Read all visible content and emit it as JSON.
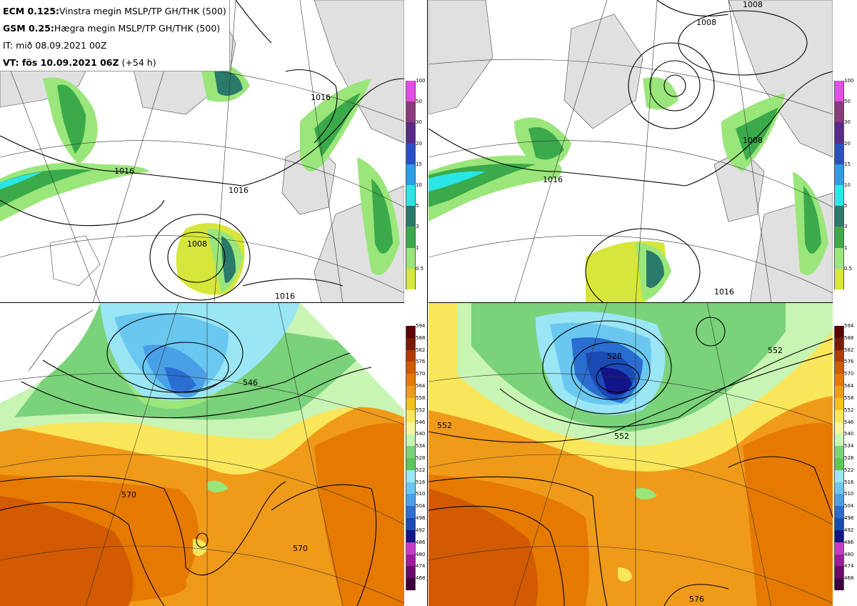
{
  "header": {
    "line1_bold": "ECM 0.125:",
    "line1_text": "Vinstra megin MSLP/TP GH/THK (500)",
    "line2_bold": "GSM 0.25:",
    "line2_text": "Hægra megin MSLP/TP GH/THK (500)",
    "line3_text": "IT: mið 08.09.2021 00Z",
    "line4_bold": "VT: fös 10.09.2021 06Z",
    "line4_text": " (+54 h)"
  },
  "precip_colorbar": {
    "ticks": [
      "100",
      "50",
      "30",
      "20",
      "15",
      "10",
      "5",
      "3",
      "1",
      "0.5"
    ],
    "colors": [
      "#e64ce6",
      "#8a3a7a",
      "#5a2a88",
      "#2a4ec8",
      "#2a9ee6",
      "#2ae6e6",
      "#2a7a6a",
      "#3aaa4a",
      "#9ae67a",
      "#d6e63a"
    ]
  },
  "thk_colorbar": {
    "ticks": [
      "594",
      "588",
      "582",
      "576",
      "570",
      "564",
      "558",
      "552",
      "546",
      "540",
      "534",
      "528",
      "522",
      "516",
      "510",
      "504",
      "498",
      "492",
      "486",
      "480",
      "474",
      "468"
    ],
    "colors": [
      "#5a0000",
      "#7a1a00",
      "#b43a00",
      "#d25a00",
      "#e67a00",
      "#f09a1a",
      "#f5c21a",
      "#fae65a",
      "#f5f59a",
      "#c8f5b4",
      "#7ad27a",
      "#5ac85a",
      "#9ae6f5",
      "#6ac8f0",
      "#4aa0e6",
      "#2a6ed2",
      "#1a4ab4",
      "#14148a",
      "#c83ac8",
      "#a01aa0",
      "#6a0a6a",
      "#3a003a"
    ]
  },
  "panels": {
    "top_left": {
      "isobars": [
        "1016",
        "1016",
        "1008",
        "1016",
        "1016"
      ]
    },
    "top_right": {
      "isobars": [
        "1008",
        "1008",
        "1016",
        "1008",
        "1016"
      ]
    },
    "bottom_left": {
      "isolines": [
        "546",
        "570",
        "570"
      ]
    },
    "bottom_right": {
      "isolines": [
        "552",
        "528",
        "552",
        "552",
        "576"
      ]
    }
  }
}
